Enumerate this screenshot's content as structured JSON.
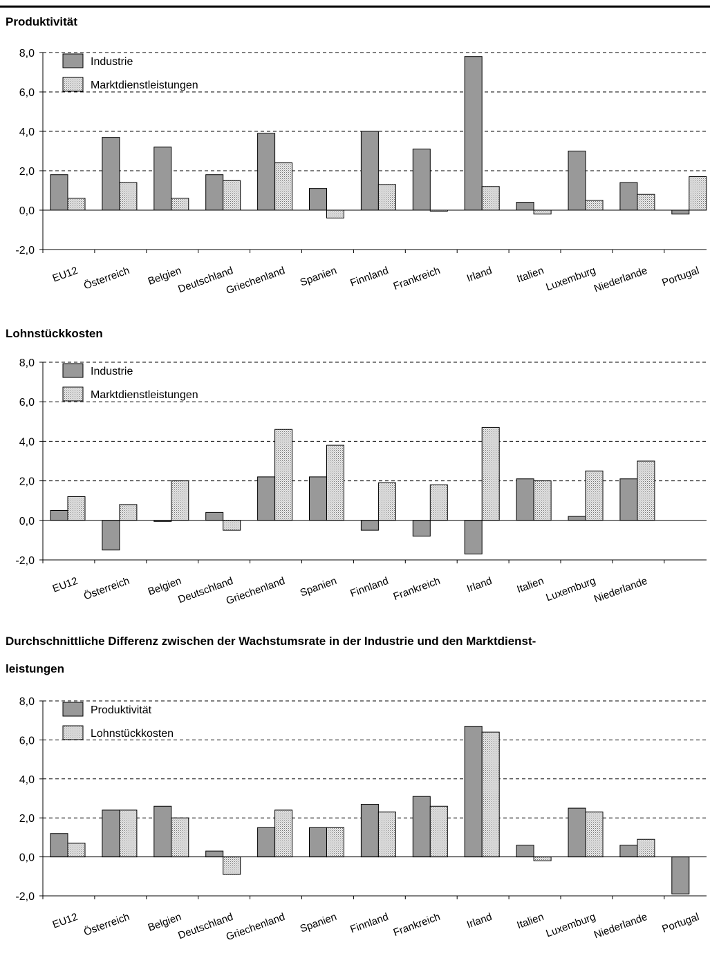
{
  "charts": [
    {
      "title": "Produktivität",
      "chart_data": {
        "type": "bar",
        "title": "Produktivität",
        "xlabel": "",
        "ylabel": "",
        "ylim": [
          -2,
          8
        ],
        "yticks": [
          "8,0",
          "6,0",
          "4,0",
          "2,0",
          "0,0",
          "-2,0"
        ],
        "grid": true,
        "legend": "top-left",
        "categories": [
          "EU12",
          "Österreich",
          "Belgien",
          "Deutschland",
          "Griechenland",
          "Spanien",
          "Finnland",
          "Frankreich",
          "Irland",
          "Italien",
          "Luxemburg",
          "Niederlande",
          "Portugal"
        ],
        "series": [
          {
            "name": "Industrie",
            "values": [
              1.8,
              3.7,
              3.2,
              1.8,
              3.9,
              1.1,
              4.0,
              3.1,
              7.8,
              0.4,
              3.0,
              1.4,
              -0.2
            ]
          },
          {
            "name": "Marktdienstleistungen",
            "values": [
              0.6,
              1.4,
              0.6,
              1.5,
              2.4,
              -0.4,
              1.3,
              0.0,
              1.2,
              -0.2,
              0.5,
              0.8,
              1.7
            ]
          }
        ]
      }
    },
    {
      "title": "Lohnstückkosten",
      "chart_data": {
        "type": "bar",
        "title": "Lohnstückkosten",
        "xlabel": "",
        "ylabel": "",
        "ylim": [
          -2,
          8
        ],
        "yticks": [
          "8,0",
          "6,0",
          "4,0",
          "2,0",
          "0,0",
          "-2,0"
        ],
        "grid": true,
        "legend": "top-left",
        "categories": [
          "EU12",
          "Österreich",
          "Belgien",
          "Deutschland",
          "Griechenland",
          "Spanien",
          "Finnland",
          "Frankreich",
          "Irland",
          "Italien",
          "Luxemburg",
          "Niederlande"
        ],
        "series": [
          {
            "name": "Industrie",
            "values": [
              0.5,
              -1.5,
              0.0,
              0.4,
              2.2,
              2.2,
              -0.5,
              -0.8,
              -1.7,
              2.1,
              0.2,
              2.1
            ]
          },
          {
            "name": "Marktdienstleistungen",
            "values": [
              1.2,
              0.8,
              2.0,
              -0.5,
              4.6,
              3.8,
              1.9,
              1.8,
              4.7,
              2.0,
              2.5,
              3.0
            ]
          }
        ]
      }
    },
    {
      "title": "Durchschnittliche Differenz zwischen der Wachstumsrate in der Industrie und den Marktdienst-\nleistungen",
      "title_lines": [
        "Durchschnittliche Differenz zwischen der Wachstumsrate in der Industrie und den Marktdienst-",
        "leistungen"
      ],
      "chart_data": {
        "type": "bar",
        "title": "Durchschnittliche Differenz zwischen der Wachstumsrate in der Industrie und den Marktdienst-leistungen",
        "xlabel": "",
        "ylabel": "",
        "ylim": [
          -2,
          8
        ],
        "yticks": [
          "8,0",
          "6,0",
          "4,0",
          "2,0",
          "0,0",
          "-2,0"
        ],
        "grid": true,
        "legend": "top-left",
        "categories": [
          "EU12",
          "Österreich",
          "Belgien",
          "Deutschland",
          "Griechenland",
          "Spanien",
          "Finnland",
          "Frankreich",
          "Irland",
          "Italien",
          "Luxemburg",
          "Niederlande",
          "Portugal"
        ],
        "series": [
          {
            "name": "Produktivität",
            "values": [
              1.2,
              2.4,
              2.6,
              0.3,
              1.5,
              1.5,
              2.7,
              3.1,
              6.7,
              0.6,
              2.5,
              0.6,
              -1.9
            ]
          },
          {
            "name": "Lohnstückkosten",
            "values": [
              0.7,
              2.4,
              2.0,
              -0.9,
              2.4,
              1.5,
              2.3,
              2.6,
              6.4,
              -0.2,
              2.3,
              0.9,
              null
            ]
          }
        ]
      }
    }
  ],
  "colors": {
    "series1_fill": "#999999",
    "series2_fill": "#e6e6e6",
    "grid": "#000000",
    "text": "#000000"
  }
}
